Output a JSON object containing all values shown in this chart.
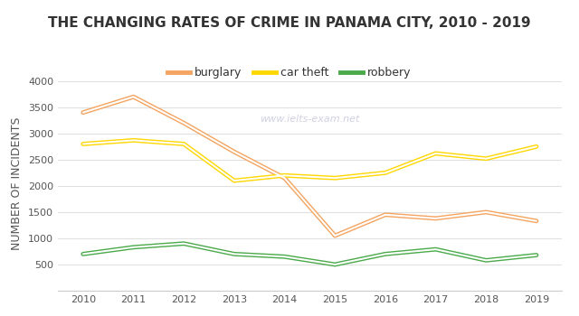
{
  "title": "THE CHANGING RATES OF CRIME IN PANAMA CITY, 2010 - 2019",
  "ylabel": "NUMBER OF INCIDENTS",
  "watermark": "www.ielts-exam.net",
  "years": [
    2010,
    2011,
    2012,
    2013,
    2014,
    2015,
    2016,
    2017,
    2018,
    2019
  ],
  "burglary": [
    3400,
    3700,
    3200,
    2650,
    2150,
    1050,
    1450,
    1380,
    1500,
    1330
  ],
  "car_theft": [
    2800,
    2870,
    2800,
    2100,
    2200,
    2150,
    2250,
    2620,
    2520,
    2750
  ],
  "robbery": [
    700,
    830,
    900,
    700,
    650,
    500,
    700,
    790,
    580,
    680
  ],
  "burglary_color": "#f4a460",
  "car_theft_color": "#ffd700",
  "robbery_color": "#4aaa4a",
  "bg_color": "#ffffff",
  "grid_color": "#e0e0e0",
  "title_fontsize": 11,
  "label_fontsize": 9,
  "legend_fontsize": 9,
  "tick_fontsize": 8,
  "ylim": [
    0,
    4100
  ],
  "yticks": [
    0,
    500,
    1000,
    1500,
    2000,
    2500,
    3000,
    3500,
    4000
  ]
}
